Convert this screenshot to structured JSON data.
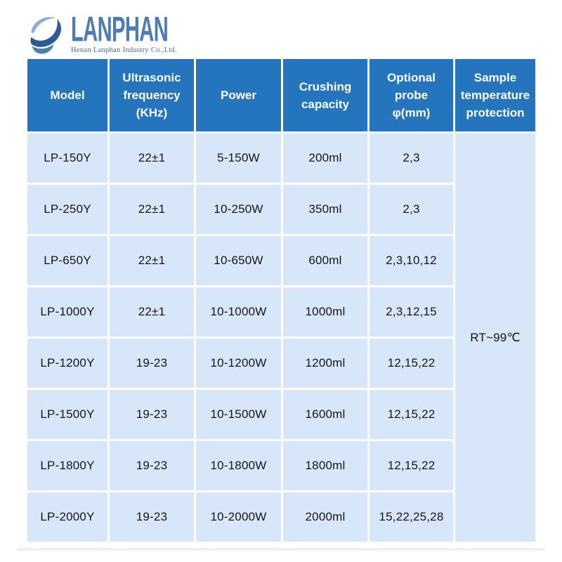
{
  "logo": {
    "brand": "LANPHAN",
    "tagline": "Henan Lanphan Industry Co.,Ltd.",
    "icon": "globe-swoosh-icon"
  },
  "colors": {
    "header_bg": "#2474BE",
    "cell_bg": "#D7E6F8",
    "gap": "#FFFFFF",
    "header_text": "#FFFFFF",
    "body_text": "#161616",
    "brand_text": "#4C7CB4"
  },
  "table": {
    "display_headers": [
      "Model",
      "Ultrasonic\nfrequency\n(KHz)",
      "Power",
      "Crushing\ncapacity",
      "Optional\nprobe\nφ(mm)",
      "Sample\ntemperature\nprotection"
    ]
  },
  "chart_data": {
    "type": "table",
    "title": "",
    "columns": [
      "Model",
      "Ultrasonic frequency (KHz)",
      "Power",
      "Crushing capacity",
      "Optional probe φ(mm)",
      "Sample temperature protection"
    ],
    "rows": [
      [
        "LP-150Y",
        "22±1",
        "5-150W",
        "200ml",
        "2,3"
      ],
      [
        "LP-250Y",
        "22±1",
        "10-250W",
        "350ml",
        "2,3"
      ],
      [
        "LP-650Y",
        "22±1",
        "10-650W",
        "600ml",
        "2,3,10,12"
      ],
      [
        "LP-1000Y",
        "22±1",
        "10-1000W",
        "1000ml",
        "2,3,12,15"
      ],
      [
        "LP-1200Y",
        "19-23",
        "10-1200W",
        "1200ml",
        "12,15,22"
      ],
      [
        "LP-1500Y",
        "19-23",
        "10-1500W",
        "1600ml",
        "12,15,22"
      ],
      [
        "LP-1800Y",
        "19-23",
        "10-1800W",
        "1800ml",
        "12,15,22"
      ],
      [
        "LP-2000Y",
        "19-23",
        "10-2000W",
        "2000ml",
        "15,22,25,28"
      ]
    ],
    "merged_cell": {
      "column": "Sample temperature protection",
      "value": "RT~99℃",
      "note": "single cell merged across all 8 rows"
    }
  }
}
